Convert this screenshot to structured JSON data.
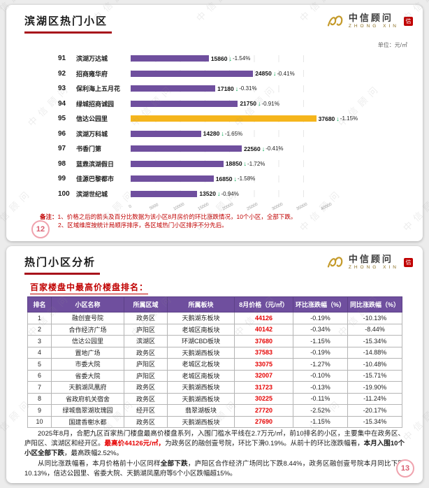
{
  "watermark": "中信顾问",
  "logo": {
    "cn": "中信顾问",
    "en": "ZHONG XIN",
    "seal": "信"
  },
  "slide1": {
    "title": "滨湖区热门小区",
    "unit_label": "单位：元/㎡",
    "chart_data": {
      "type": "bar",
      "orientation": "horizontal",
      "xlim": [
        0,
        40000
      ],
      "axis_ticks": [
        "0",
        "5000",
        "10000",
        "15000",
        "20000",
        "25000",
        "30000",
        "35000",
        "40000"
      ],
      "ranks": [
        91,
        92,
        93,
        94,
        95,
        96,
        97,
        98,
        99,
        100
      ],
      "categories": [
        "滨湖万达城",
        "招商雍华府",
        "保利海上五月花",
        "绿城招商诚园",
        "信达公园里",
        "滨湖万科城",
        "书香门第",
        "蓝鼎滨湖假日",
        "佳源巴黎都市",
        "滨湖世纪城"
      ],
      "values": [
        15860,
        24850,
        17180,
        21750,
        37680,
        14280,
        22560,
        18850,
        16850,
        13520
      ],
      "changes": [
        "-1.54%",
        "-0.41%",
        "-0.31%",
        "-0.91%",
        "-1.15%",
        "-1.65%",
        "-0.41%",
        "-1.72%",
        "-1.58%",
        "-0.94%"
      ],
      "highlight_index": 4,
      "bar_color": "#6f4f9e",
      "highlight_color": "#f5b51c",
      "arrow_glyph": "↓"
    },
    "notes": {
      "label": "备注：",
      "line1": "1、价格之后的箭头及百分比数据为该小区8月房价的环比涨跌情况，10个小区，全部下跌。",
      "line2": "2、区域维度按统计局顺序排序，各区域热门小区排序不分先后。"
    },
    "page_number": "12"
  },
  "slide2": {
    "title": "热门小区分析",
    "subtitle": "百家楼盘中最高价楼盘排名：",
    "table": {
      "headers": [
        "排名",
        "小区名称",
        "所属区域",
        "所属板块",
        "8月价格（元/㎡）",
        "环比涨跌幅（%）",
        "同比涨跌幅（%）"
      ],
      "rows": [
        [
          "1",
          "融创壹号院",
          "政务区",
          "天鹅湖东板块",
          "44126",
          "-0.19%",
          "-10.13%"
        ],
        [
          "2",
          "合作经济广场",
          "庐阳区",
          "老城区南板块",
          "40142",
          "-0.34%",
          "-8.44%"
        ],
        [
          "3",
          "信达公园里",
          "滨湖区",
          "环湖CBD板块",
          "37680",
          "-1.15%",
          "-15.34%"
        ],
        [
          "4",
          "置地广场",
          "政务区",
          "天鹅湖西板块",
          "37583",
          "-0.19%",
          "-14.88%"
        ],
        [
          "5",
          "市委大院",
          "庐阳区",
          "老城区北板块",
          "33075",
          "-1.27%",
          "-10.48%"
        ],
        [
          "6",
          "省委大院",
          "庐阳区",
          "老城区南板块",
          "32007",
          "-0.10%",
          "-15.71%"
        ],
        [
          "7",
          "天鹅湖凤凰府",
          "政务区",
          "天鹅湖西板块",
          "31723",
          "-0.13%",
          "-19.90%"
        ],
        [
          "8",
          "省政府机关宿舍",
          "政务区",
          "天鹅湖西板块",
          "30225",
          "-0.11%",
          "-11.24%"
        ],
        [
          "9",
          "绿城翡翠湖玫瑰园",
          "经开区",
          "翡翠湖板块",
          "27720",
          "-2.52%",
          "-20.17%"
        ],
        [
          "10",
          "国建香榭水都",
          "政务区",
          "天鹅湖西板块",
          "27690",
          "-1.15%",
          "-15.34%"
        ]
      ]
    },
    "paragraphs": [
      [
        {
          "text": "2025年8月，合肥九区百家热门楼盘最高价楼盘系列，入围门槛水平线在2.7万元/㎡，前10排名的小区，主要集中在政务区、庐阳区、滨湖区和经开区。",
          "style": "normal"
        },
        {
          "text": "最高价44126元/㎡，",
          "style": "red-bold"
        },
        {
          "text": "为政务区的融创壹号院，环比下滑0.19%。从前十的环比涨跌幅看，",
          "style": "normal"
        },
        {
          "text": "本月入围10个小区全部下跌",
          "style": "bold"
        },
        {
          "text": "，最高跌幅2.52%。",
          "style": "normal"
        }
      ],
      [
        {
          "text": "从同比涨跌幅看，本月价格前十小区同样",
          "style": "normal"
        },
        {
          "text": "全部下跌",
          "style": "bold"
        },
        {
          "text": "，庐阳区合作经济广场同比下跌8.44%，政务区融创壹号院本月同比下跌10.13%，信达公园里、省委大院、天鹅湖凤凰府等5个小区跌幅超15%。",
          "style": "normal"
        }
      ]
    ],
    "page_number": "13"
  }
}
